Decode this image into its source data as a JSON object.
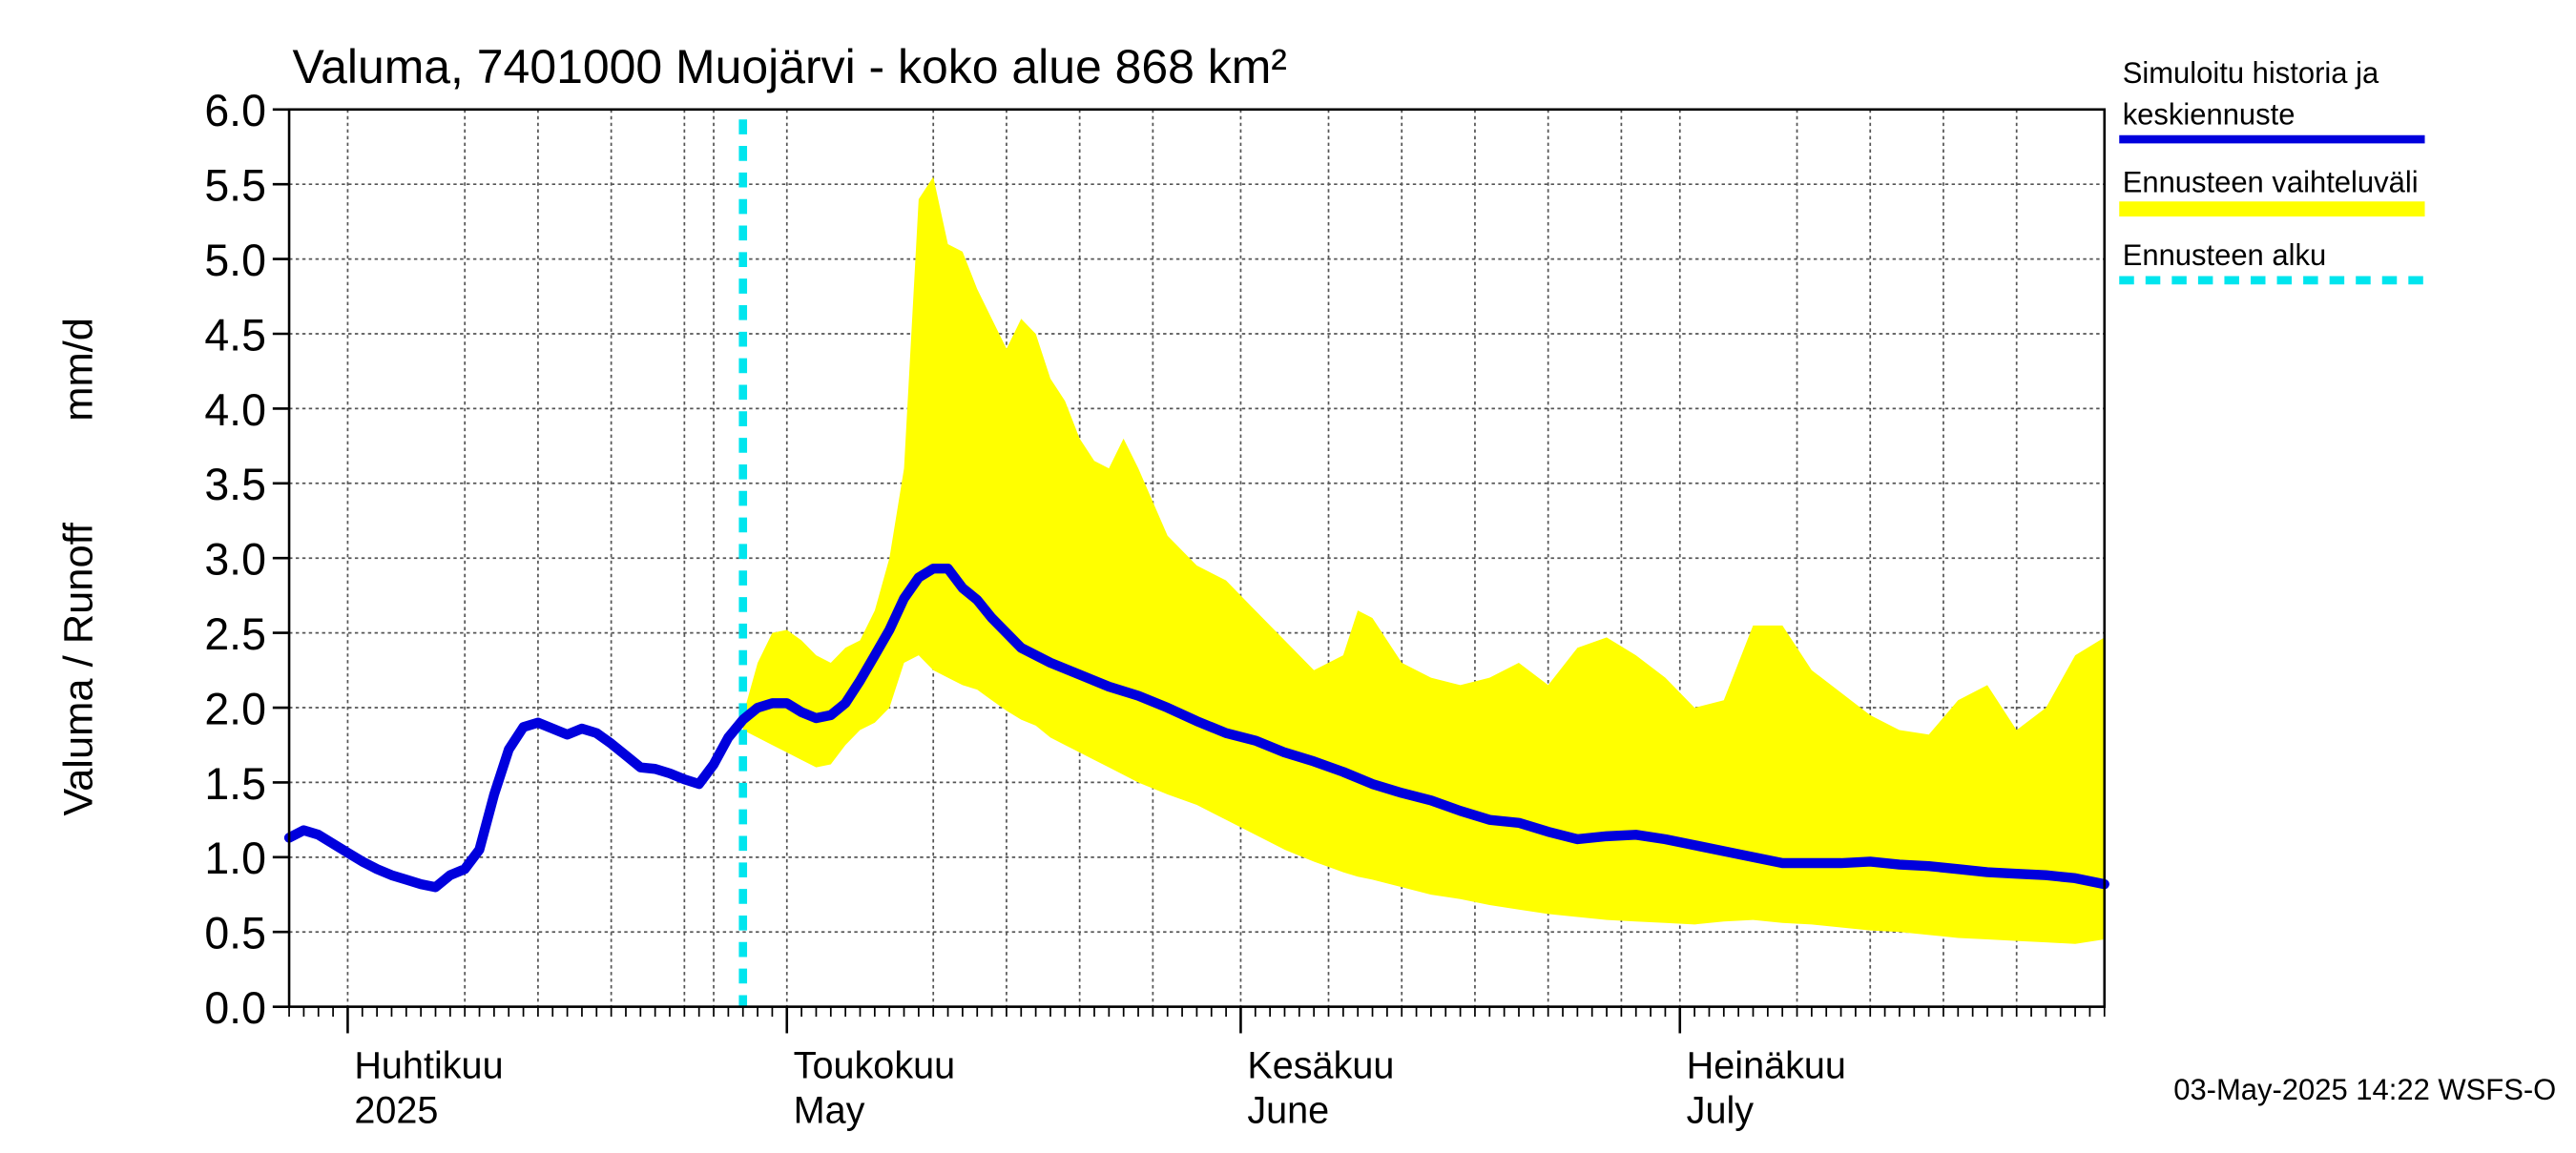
{
  "chart_data": {
    "type": "line",
    "title": "Valuma, 7401000 Muojärvi - koko alue 868 km²",
    "ylabel_left": "Valuma / Runoff",
    "ylabel_unit": "mm/d",
    "ylim": [
      0,
      6
    ],
    "yticks": [
      "0.0",
      "0.5",
      "1.0",
      "1.5",
      "2.0",
      "2.5",
      "3.0",
      "3.5",
      "4.0",
      "4.5",
      "5.0",
      "5.5",
      "6.0"
    ],
    "x_range_days": [
      0,
      124
    ],
    "x_origin": "2025-03-28",
    "month_boundaries": [
      4,
      34,
      65,
      95
    ],
    "week_gridlines": [
      12,
      17,
      22,
      27,
      29,
      44,
      49,
      54,
      59,
      71,
      76,
      81,
      86,
      91,
      103,
      108,
      113,
      118
    ],
    "month_labels": [
      {
        "day": 4,
        "fi": "Huhtikuu",
        "en": "2025"
      },
      {
        "day": 34,
        "fi": "Toukokuu",
        "en": "May"
      },
      {
        "day": 65,
        "fi": "Kesäkuu",
        "en": "June"
      },
      {
        "day": 95,
        "fi": "Heinäkuu",
        "en": "July"
      }
    ],
    "forecast_start_day": 31,
    "series": [
      {
        "name": "Simuloitu historia ja keskiennuste",
        "color": "#0000dd",
        "x": [
          0,
          1,
          2,
          3,
          4,
          5,
          6,
          7,
          8,
          9,
          10,
          11,
          12,
          13,
          14,
          15,
          16,
          17,
          18,
          19,
          20,
          21,
          22,
          23,
          24,
          25,
          26,
          27,
          28,
          29,
          30,
          31,
          32,
          33,
          34,
          35,
          36,
          37,
          38,
          39,
          40,
          41,
          42,
          43,
          44,
          45,
          46,
          47,
          48,
          49,
          50,
          52,
          54,
          56,
          58,
          60,
          62,
          64,
          66,
          68,
          70,
          72,
          74,
          76,
          78,
          80,
          82,
          84,
          86,
          88,
          90,
          92,
          94,
          96,
          98,
          100,
          102,
          104,
          106,
          108,
          110,
          112,
          114,
          116,
          118,
          120,
          122,
          124
        ],
        "y": [
          1.13,
          1.18,
          1.15,
          1.09,
          1.03,
          0.97,
          0.92,
          0.88,
          0.85,
          0.82,
          0.8,
          0.88,
          0.92,
          1.05,
          1.42,
          1.72,
          1.87,
          1.9,
          1.86,
          1.82,
          1.86,
          1.83,
          1.76,
          1.68,
          1.6,
          1.59,
          1.56,
          1.52,
          1.49,
          1.62,
          1.8,
          1.92,
          2.0,
          2.03,
          2.03,
          1.97,
          1.93,
          1.95,
          2.03,
          2.18,
          2.35,
          2.52,
          2.73,
          2.87,
          2.93,
          2.93,
          2.8,
          2.72,
          2.6,
          2.5,
          2.4,
          2.3,
          2.22,
          2.14,
          2.08,
          2.0,
          1.91,
          1.83,
          1.78,
          1.7,
          1.64,
          1.57,
          1.49,
          1.43,
          1.38,
          1.31,
          1.25,
          1.23,
          1.17,
          1.12,
          1.14,
          1.15,
          1.12,
          1.08,
          1.04,
          1.0,
          0.96,
          0.96,
          0.96,
          0.97,
          0.95,
          0.94,
          0.92,
          0.9,
          0.89,
          0.88,
          0.86,
          0.82
        ]
      },
      {
        "name": "Ennusteen vaihteluväli",
        "color": "#ffff00",
        "x": [
          31,
          32,
          33,
          34,
          35,
          36,
          37,
          38,
          39,
          40,
          41,
          42,
          43,
          44,
          45,
          46,
          47,
          48,
          49,
          50,
          51,
          52,
          53,
          54,
          55,
          56,
          57,
          58,
          60,
          62,
          64,
          66,
          68,
          70,
          72,
          73,
          74,
          76,
          78,
          80,
          82,
          84,
          86,
          88,
          90,
          92,
          94,
          96,
          98,
          100,
          102,
          104,
          106,
          108,
          110,
          112,
          114,
          116,
          118,
          120,
          122,
          124
        ],
        "upper": [
          1.95,
          2.3,
          2.5,
          2.52,
          2.45,
          2.35,
          2.3,
          2.4,
          2.45,
          2.65,
          3.0,
          3.6,
          5.4,
          5.55,
          5.1,
          5.05,
          4.8,
          4.6,
          4.4,
          4.6,
          4.5,
          4.2,
          4.05,
          3.8,
          3.65,
          3.6,
          3.8,
          3.6,
          3.15,
          2.95,
          2.85,
          2.65,
          2.45,
          2.25,
          2.35,
          2.65,
          2.6,
          2.3,
          2.2,
          2.15,
          2.2,
          2.3,
          2.15,
          2.4,
          2.47,
          2.35,
          2.2,
          2.0,
          2.05,
          2.55,
          2.55,
          2.25,
          2.1,
          1.95,
          1.85,
          1.82,
          2.05,
          2.15,
          1.85,
          2.0,
          2.35,
          2.47
        ],
        "lower": [
          1.85,
          1.8,
          1.75,
          1.7,
          1.65,
          1.6,
          1.62,
          1.75,
          1.85,
          1.9,
          2.0,
          2.3,
          2.35,
          2.25,
          2.2,
          2.15,
          2.12,
          2.05,
          1.98,
          1.92,
          1.88,
          1.8,
          1.75,
          1.7,
          1.65,
          1.6,
          1.55,
          1.5,
          1.42,
          1.35,
          1.25,
          1.15,
          1.05,
          0.97,
          0.9,
          0.87,
          0.85,
          0.8,
          0.75,
          0.72,
          0.68,
          0.65,
          0.62,
          0.6,
          0.58,
          0.57,
          0.56,
          0.55,
          0.57,
          0.58,
          0.56,
          0.55,
          0.53,
          0.51,
          0.5,
          0.48,
          0.46,
          0.45,
          0.44,
          0.43,
          0.42,
          0.45
        ]
      },
      {
        "name": "Ennusteen alku",
        "color": "#00e5ee"
      }
    ],
    "legend_position": "right",
    "footer": "03-May-2025 14:22 WSFS-O"
  }
}
